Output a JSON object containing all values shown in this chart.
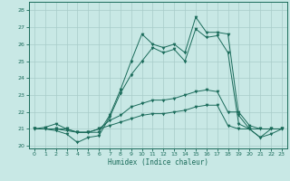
{
  "xlabel": "Humidex (Indice chaleur)",
  "bg_color": "#c8e8e5",
  "line_color": "#1a6b5a",
  "grid_color": "#a8ccc9",
  "xlim": [
    -0.5,
    23.5
  ],
  "ylim": [
    19.85,
    28.5
  ],
  "yticks": [
    20,
    21,
    22,
    23,
    24,
    25,
    26,
    27,
    28
  ],
  "xticks": [
    0,
    1,
    2,
    3,
    4,
    5,
    6,
    7,
    8,
    9,
    10,
    11,
    12,
    13,
    14,
    15,
    16,
    17,
    18,
    19,
    20,
    21,
    22,
    23
  ],
  "s1": [
    21.0,
    21.1,
    21.3,
    21.0,
    20.8,
    20.8,
    20.8,
    21.8,
    23.3,
    25.0,
    26.6,
    26.0,
    25.8,
    26.0,
    25.5,
    27.6,
    26.7,
    26.7,
    26.6,
    21.8,
    21.0,
    20.5,
    21.0,
    21.0
  ],
  "s2": [
    21.0,
    21.0,
    20.9,
    20.7,
    20.2,
    20.5,
    20.6,
    21.7,
    23.1,
    24.2,
    25.0,
    25.8,
    25.5,
    25.7,
    25.0,
    26.9,
    26.4,
    26.5,
    25.5,
    21.3,
    21.0,
    20.5,
    20.7,
    21.0
  ],
  "s3": [
    21.0,
    21.0,
    21.0,
    21.0,
    20.8,
    20.8,
    21.0,
    21.5,
    21.8,
    22.3,
    22.5,
    22.7,
    22.7,
    22.8,
    23.0,
    23.2,
    23.3,
    23.2,
    22.0,
    22.0,
    21.2,
    21.0,
    21.0,
    21.0
  ],
  "s4": [
    21.0,
    21.0,
    21.0,
    20.9,
    20.8,
    20.8,
    21.0,
    21.2,
    21.4,
    21.6,
    21.8,
    21.9,
    21.9,
    22.0,
    22.1,
    22.3,
    22.4,
    22.4,
    21.2,
    21.0,
    21.0,
    21.0,
    21.0,
    21.0
  ]
}
